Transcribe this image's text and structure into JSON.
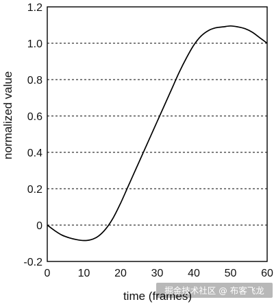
{
  "chart_data": {
    "type": "line",
    "xlabel": "time (frames)",
    "ylabel": "normalized value",
    "xlim": [
      0,
      60
    ],
    "ylim": [
      -0.2,
      1.2
    ],
    "x_ticks": [
      "0",
      "10",
      "20",
      "30",
      "40",
      "50",
      "60"
    ],
    "y_ticks": [
      "-0.2",
      "0",
      "0.2",
      "0.4",
      "0.6",
      "0.8",
      "1.0",
      "1.2"
    ],
    "grid": "horizontal dashed",
    "series": [
      {
        "x": [
          0,
          2,
          4,
          6,
          8,
          10,
          12,
          14,
          16,
          18,
          20,
          22,
          24,
          26,
          28,
          30,
          32,
          34,
          36,
          38,
          40,
          42,
          44,
          46,
          48,
          50,
          52,
          54,
          56,
          58,
          60
        ],
        "y": [
          0,
          -0.03,
          -0.055,
          -0.07,
          -0.08,
          -0.085,
          -0.08,
          -0.06,
          -0.02,
          0.04,
          0.12,
          0.21,
          0.3,
          0.39,
          0.48,
          0.57,
          0.66,
          0.75,
          0.84,
          0.92,
          0.99,
          1.04,
          1.07,
          1.085,
          1.09,
          1.095,
          1.09,
          1.08,
          1.06,
          1.03,
          1.0
        ],
        "color": "#000000"
      }
    ]
  },
  "watermark": "掘金技术社区 @ 布客飞龙"
}
